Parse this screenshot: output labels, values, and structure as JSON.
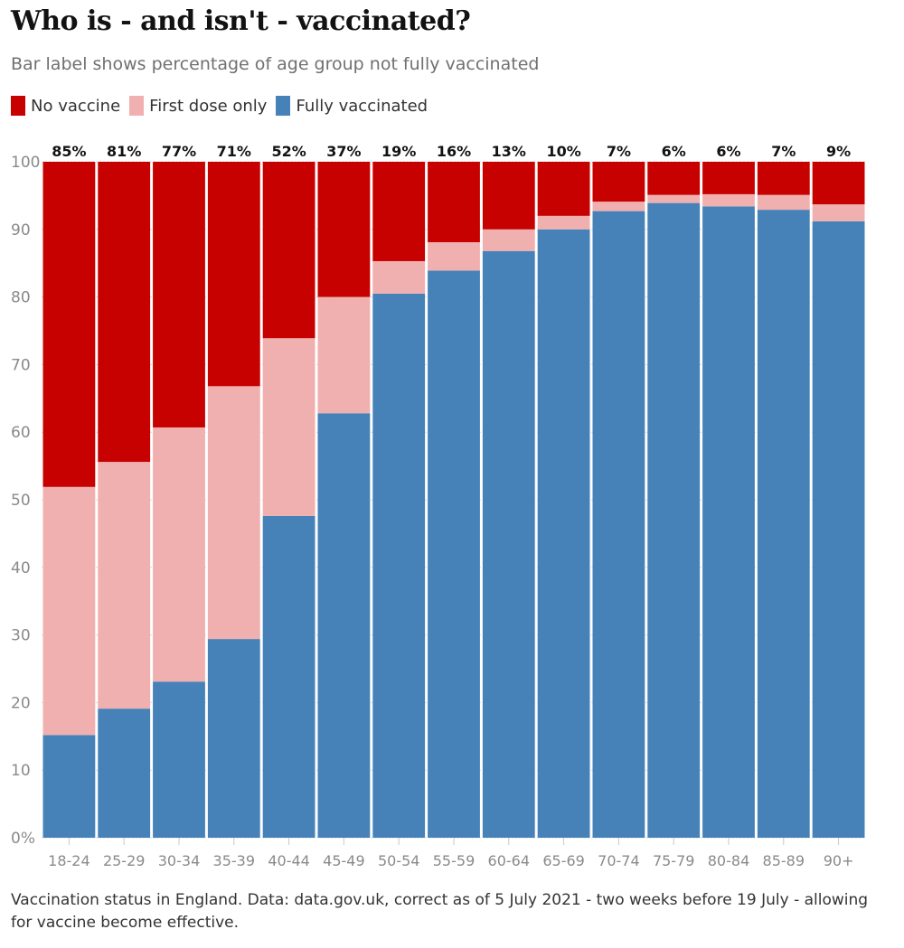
{
  "title": "Who is - and isn't - vaccinated?",
  "subtitle": "Bar label shows percentage of age group not fully vaccinated",
  "footer": "Vaccination status in England. Data: data.gov.uk, correct as of 5 July 2021 - two weeks before 19 July - allowing for vaccine become effective.",
  "colors": {
    "no_vaccine": "#c70000",
    "first_dose": "#f0b0b0",
    "fully": "#4682b8",
    "grid": "#d9d9d9"
  },
  "legend": [
    {
      "label": "No vaccine",
      "color": "#c70000"
    },
    {
      "label": "First dose only",
      "color": "#f0b0b0"
    },
    {
      "label": "Fully vaccinated",
      "color": "#4682b8"
    }
  ],
  "chart_data": {
    "type": "bar",
    "stacked": true,
    "title": "Who is - and isn't - vaccinated?",
    "categories": [
      "18-24",
      "25-29",
      "30-34",
      "35-39",
      "40-44",
      "45-49",
      "50-54",
      "55-59",
      "60-64",
      "65-69",
      "70-74",
      "75-79",
      "80-84",
      "85-89",
      "90+"
    ],
    "series": [
      {
        "name": "Fully vaccinated",
        "values": [
          15.2,
          19.1,
          23.1,
          29.4,
          47.6,
          62.8,
          80.5,
          83.9,
          86.8,
          90.0,
          92.7,
          93.9,
          93.4,
          92.9,
          91.2
        ]
      },
      {
        "name": "First dose only",
        "values": [
          36.7,
          36.5,
          37.6,
          37.4,
          26.3,
          17.2,
          4.8,
          4.2,
          3.2,
          2.0,
          1.4,
          1.2,
          1.8,
          2.2,
          2.5
        ]
      },
      {
        "name": "No vaccine",
        "values": [
          48.1,
          44.4,
          39.3,
          33.2,
          26.1,
          20.0,
          14.7,
          11.9,
          10.0,
          8.0,
          5.9,
          4.9,
          4.8,
          4.9,
          6.3
        ]
      }
    ],
    "data_labels": [
      "85%",
      "81%",
      "77%",
      "71%",
      "52%",
      "37%",
      "19%",
      "16%",
      "13%",
      "10%",
      "7%",
      "6%",
      "6%",
      "7%",
      "9%"
    ],
    "y_ticks": [
      "0%",
      "10",
      "20",
      "30",
      "40",
      "50",
      "60",
      "70",
      "80",
      "90",
      "100"
    ],
    "ylim": [
      0,
      100
    ],
    "xlabel": "",
    "ylabel": ""
  }
}
